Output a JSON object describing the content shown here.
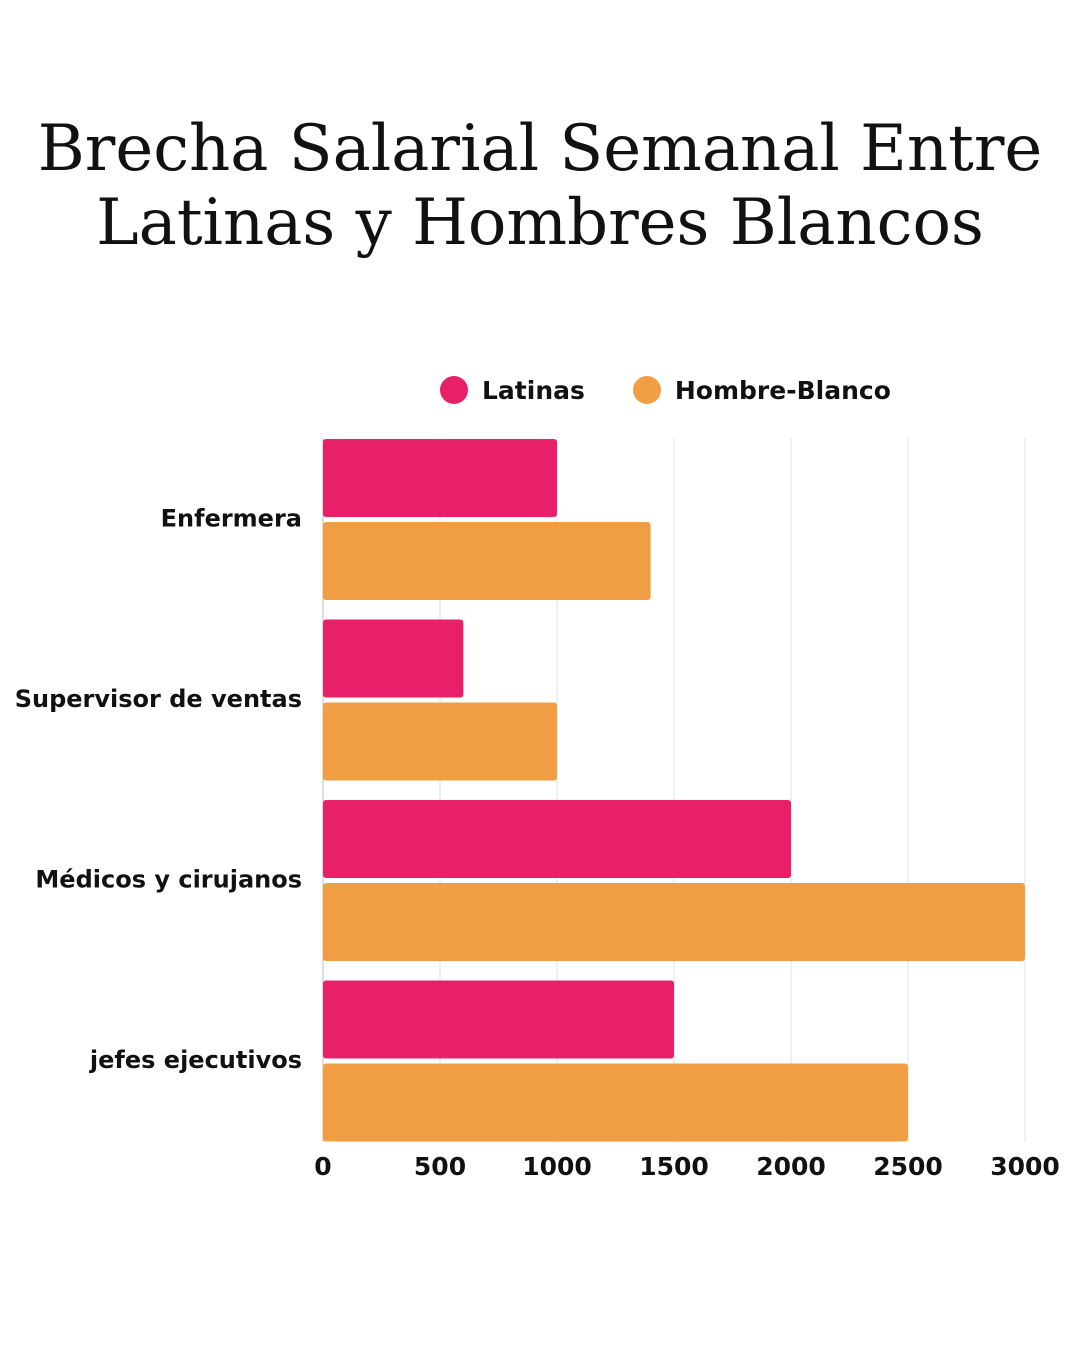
{
  "title": {
    "line1": "Brecha Salarial Semanal Entre",
    "line2": "Latinas y Hombres Blancos"
  },
  "chart_data": {
    "type": "bar",
    "orientation": "horizontal",
    "title": "Brecha Salarial Semanal Entre Latinas y Hombres Blancos",
    "categories": [
      "Enfermera",
      "Supervisor de ventas",
      "Médicos y cirujanos",
      "jefes ejecutivos"
    ],
    "series": [
      {
        "name": "Latinas",
        "color": "#e8206a",
        "values": [
          1000,
          600,
          2000,
          1500
        ]
      },
      {
        "name": "Hombre-Blanco",
        "color": "#f09e44",
        "values": [
          1400,
          1000,
          3000,
          2500
        ]
      }
    ],
    "xlim": [
      0,
      3000
    ],
    "xticks": [
      0,
      500,
      1000,
      1500,
      2000,
      2500,
      3000
    ],
    "grid": true,
    "legend_position": "top"
  }
}
